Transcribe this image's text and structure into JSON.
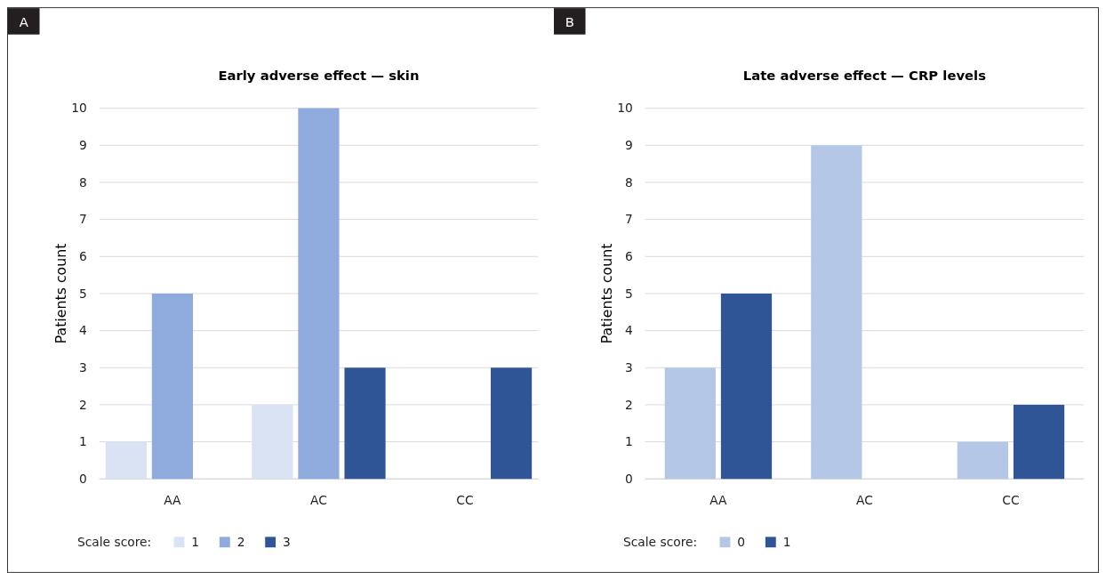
{
  "chart_data": [
    {
      "type": "bar",
      "title": "Early adverse effect — skin",
      "ylabel": "Patients count",
      "annotations": [
        "A"
      ],
      "categories": [
        "AA",
        "AC",
        "CC"
      ],
      "legend_title": "Scale score:",
      "legend": "bottom",
      "grid": "y",
      "ylim": [
        0,
        10
      ],
      "yticks": [
        0,
        1,
        2,
        3,
        4,
        5,
        6,
        7,
        8,
        9,
        10
      ],
      "series": [
        {
          "name": "1",
          "color": "#dae3f3",
          "values": [
            1,
            2,
            0
          ]
        },
        {
          "name": "2",
          "color": "#8faadc",
          "values": [
            5,
            10,
            0
          ]
        },
        {
          "name": "3",
          "color": "#2f5597",
          "values": [
            0,
            3,
            3
          ]
        }
      ]
    },
    {
      "type": "bar",
      "title": "Late adverse effect — CRP levels",
      "ylabel": "Patients count",
      "annotations": [
        "B"
      ],
      "categories": [
        "AA",
        "AC",
        "CC"
      ],
      "legend_title": "Scale score:",
      "legend": "bottom",
      "grid": "y",
      "ylim": [
        0,
        10
      ],
      "yticks": [
        0,
        1,
        2,
        3,
        4,
        5,
        6,
        7,
        8,
        9,
        10
      ],
      "series": [
        {
          "name": "0",
          "color": "#b4c7e7",
          "values": [
            3,
            9,
            1
          ]
        },
        {
          "name": "1",
          "color": "#2f5597",
          "values": [
            5,
            0,
            2
          ]
        }
      ]
    }
  ]
}
